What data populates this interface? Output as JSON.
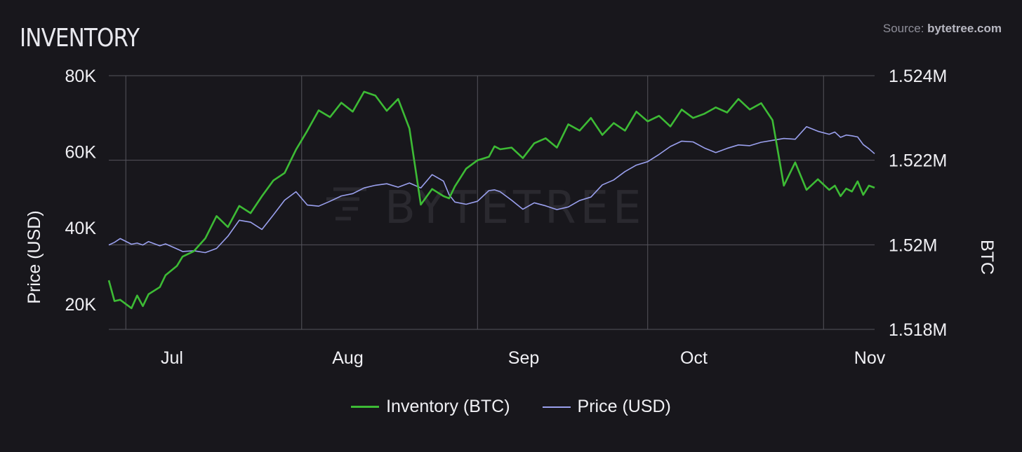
{
  "header": {
    "title": "INVENTORY",
    "source_prefix": "Source: ",
    "source_site": "bytetree.com"
  },
  "watermark": "BYTETREE",
  "colors": {
    "background": "#18171c",
    "inventory": "#3dbb35",
    "price": "#9aa0ee",
    "grid": "#55545c"
  },
  "chart_data": {
    "type": "line",
    "title": "INVENTORY",
    "ylabel_left": "Price (USD)",
    "ylabel_right": "BTC",
    "ylim_left": [
      13333,
      80000
    ],
    "yticks_left": [
      20000,
      40000,
      60000,
      80000
    ],
    "ytick_labels_left": [
      "20K",
      "40K",
      "60K",
      "80K"
    ],
    "ylim_right": [
      1518000,
      1524000
    ],
    "yticks_right": [
      1518000,
      1520000,
      1522000,
      1524000
    ],
    "ytick_labels_right": [
      "1.518M",
      "1.52M",
      "1.522M",
      "1.524M"
    ],
    "xlim": [
      "2021-06-19",
      "2021-11-01"
    ],
    "x_ticks": [
      "2021-07-01",
      "2021-08-01",
      "2021-09-01",
      "2021-10-01",
      "2021-11-01"
    ],
    "x_tick_labels": [
      "Jul",
      "Aug",
      "Sep",
      "Oct",
      "Nov"
    ],
    "x_gridlines": [
      "2021-06-22",
      "2021-07-23",
      "2021-08-23",
      "2021-09-22",
      "2021-10-23"
    ],
    "grid": true,
    "legend_position": "bottom",
    "series": [
      {
        "name": "Inventory (BTC)",
        "axis": "right",
        "x": [
          "2021-06-19",
          "2021-06-20",
          "2021-06-21",
          "2021-06-23",
          "2021-06-24",
          "2021-06-25",
          "2021-06-26",
          "2021-06-28",
          "2021-06-29",
          "2021-07-01",
          "2021-07-02",
          "2021-07-04",
          "2021-07-06",
          "2021-07-08",
          "2021-07-10",
          "2021-07-12",
          "2021-07-14",
          "2021-07-16",
          "2021-07-18",
          "2021-07-20",
          "2021-07-22",
          "2021-07-24",
          "2021-07-26",
          "2021-07-28",
          "2021-07-30",
          "2021-08-01",
          "2021-08-03",
          "2021-08-05",
          "2021-08-07",
          "2021-08-09",
          "2021-08-11",
          "2021-08-13",
          "2021-08-15",
          "2021-08-17",
          "2021-08-18",
          "2021-08-19",
          "2021-08-21",
          "2021-08-23",
          "2021-08-25",
          "2021-08-26",
          "2021-08-27",
          "2021-08-29",
          "2021-08-31",
          "2021-09-02",
          "2021-09-04",
          "2021-09-06",
          "2021-09-08",
          "2021-09-10",
          "2021-09-12",
          "2021-09-14",
          "2021-09-16",
          "2021-09-18",
          "2021-09-20",
          "2021-09-22",
          "2021-09-24",
          "2021-09-26",
          "2021-09-28",
          "2021-09-30",
          "2021-10-02",
          "2021-10-04",
          "2021-10-06",
          "2021-10-08",
          "2021-10-10",
          "2021-10-12",
          "2021-10-14",
          "2021-10-16",
          "2021-10-18",
          "2021-10-20",
          "2021-10-22",
          "2021-10-24",
          "2021-10-25",
          "2021-10-26",
          "2021-10-27",
          "2021-10-28",
          "2021-10-29",
          "2021-10-30",
          "2021-10-31",
          "2021-11-01"
        ],
        "values": [
          1519160,
          1518670,
          1518700,
          1518500,
          1518800,
          1518550,
          1518830,
          1519000,
          1519280,
          1519500,
          1519720,
          1519850,
          1520150,
          1520680,
          1520420,
          1520920,
          1520750,
          1521150,
          1521520,
          1521700,
          1522250,
          1522700,
          1523180,
          1523020,
          1523360,
          1523150,
          1523620,
          1523530,
          1523170,
          1523450,
          1522750,
          1520950,
          1521320,
          1521150,
          1521100,
          1521380,
          1521800,
          1522000,
          1522080,
          1522330,
          1522260,
          1522300,
          1522050,
          1522400,
          1522520,
          1522300,
          1522850,
          1522700,
          1523000,
          1522600,
          1522880,
          1522700,
          1523150,
          1522920,
          1523050,
          1522800,
          1523200,
          1523000,
          1523100,
          1523250,
          1523130,
          1523450,
          1523200,
          1523350,
          1522950,
          1521400,
          1521950,
          1521300,
          1521550,
          1521300,
          1521400,
          1521150,
          1521330,
          1521260,
          1521500,
          1521180,
          1521400,
          1521350
        ]
      },
      {
        "name": "Price (USD)",
        "axis": "left",
        "x": [
          "2021-06-19",
          "2021-06-20",
          "2021-06-21",
          "2021-06-23",
          "2021-06-24",
          "2021-06-25",
          "2021-06-26",
          "2021-06-28",
          "2021-06-29",
          "2021-07-01",
          "2021-07-02",
          "2021-07-04",
          "2021-07-06",
          "2021-07-08",
          "2021-07-10",
          "2021-07-12",
          "2021-07-14",
          "2021-07-16",
          "2021-07-18",
          "2021-07-20",
          "2021-07-22",
          "2021-07-24",
          "2021-07-26",
          "2021-07-28",
          "2021-07-30",
          "2021-08-01",
          "2021-08-03",
          "2021-08-05",
          "2021-08-07",
          "2021-08-09",
          "2021-08-11",
          "2021-08-13",
          "2021-08-15",
          "2021-08-17",
          "2021-08-18",
          "2021-08-19",
          "2021-08-21",
          "2021-08-23",
          "2021-08-25",
          "2021-08-26",
          "2021-08-27",
          "2021-08-29",
          "2021-08-31",
          "2021-09-02",
          "2021-09-04",
          "2021-09-06",
          "2021-09-08",
          "2021-09-10",
          "2021-09-12",
          "2021-09-14",
          "2021-09-16",
          "2021-09-18",
          "2021-09-20",
          "2021-09-22",
          "2021-09-24",
          "2021-09-26",
          "2021-09-28",
          "2021-09-30",
          "2021-10-02",
          "2021-10-04",
          "2021-10-06",
          "2021-10-08",
          "2021-10-10",
          "2021-10-12",
          "2021-10-14",
          "2021-10-16",
          "2021-10-18",
          "2021-10-20",
          "2021-10-22",
          "2021-10-24",
          "2021-10-25",
          "2021-10-26",
          "2021-10-27",
          "2021-10-28",
          "2021-10-29",
          "2021-10-30",
          "2021-10-31",
          "2021-11-01"
        ],
        "values": [
          35500,
          36200,
          37200,
          35700,
          36000,
          35500,
          36400,
          35300,
          35800,
          34500,
          33800,
          34000,
          33500,
          34600,
          37800,
          42000,
          41500,
          39600,
          43400,
          47300,
          49500,
          46000,
          45700,
          47000,
          48400,
          49000,
          50500,
          51200,
          51600,
          50700,
          51800,
          50500,
          54000,
          52300,
          48700,
          46800,
          46200,
          47000,
          49800,
          50000,
          49500,
          47300,
          44900,
          46600,
          45800,
          44800,
          45500,
          47200,
          48100,
          51300,
          52600,
          54800,
          56500,
          57400,
          59300,
          61400,
          62800,
          62600,
          61000,
          59800,
          60900,
          61800,
          61600,
          62500,
          63000,
          63500,
          63300,
          66600,
          65400,
          64600,
          65200,
          63800,
          64400,
          64200,
          63900,
          61900,
          60800,
          59500
        ]
      }
    ]
  }
}
